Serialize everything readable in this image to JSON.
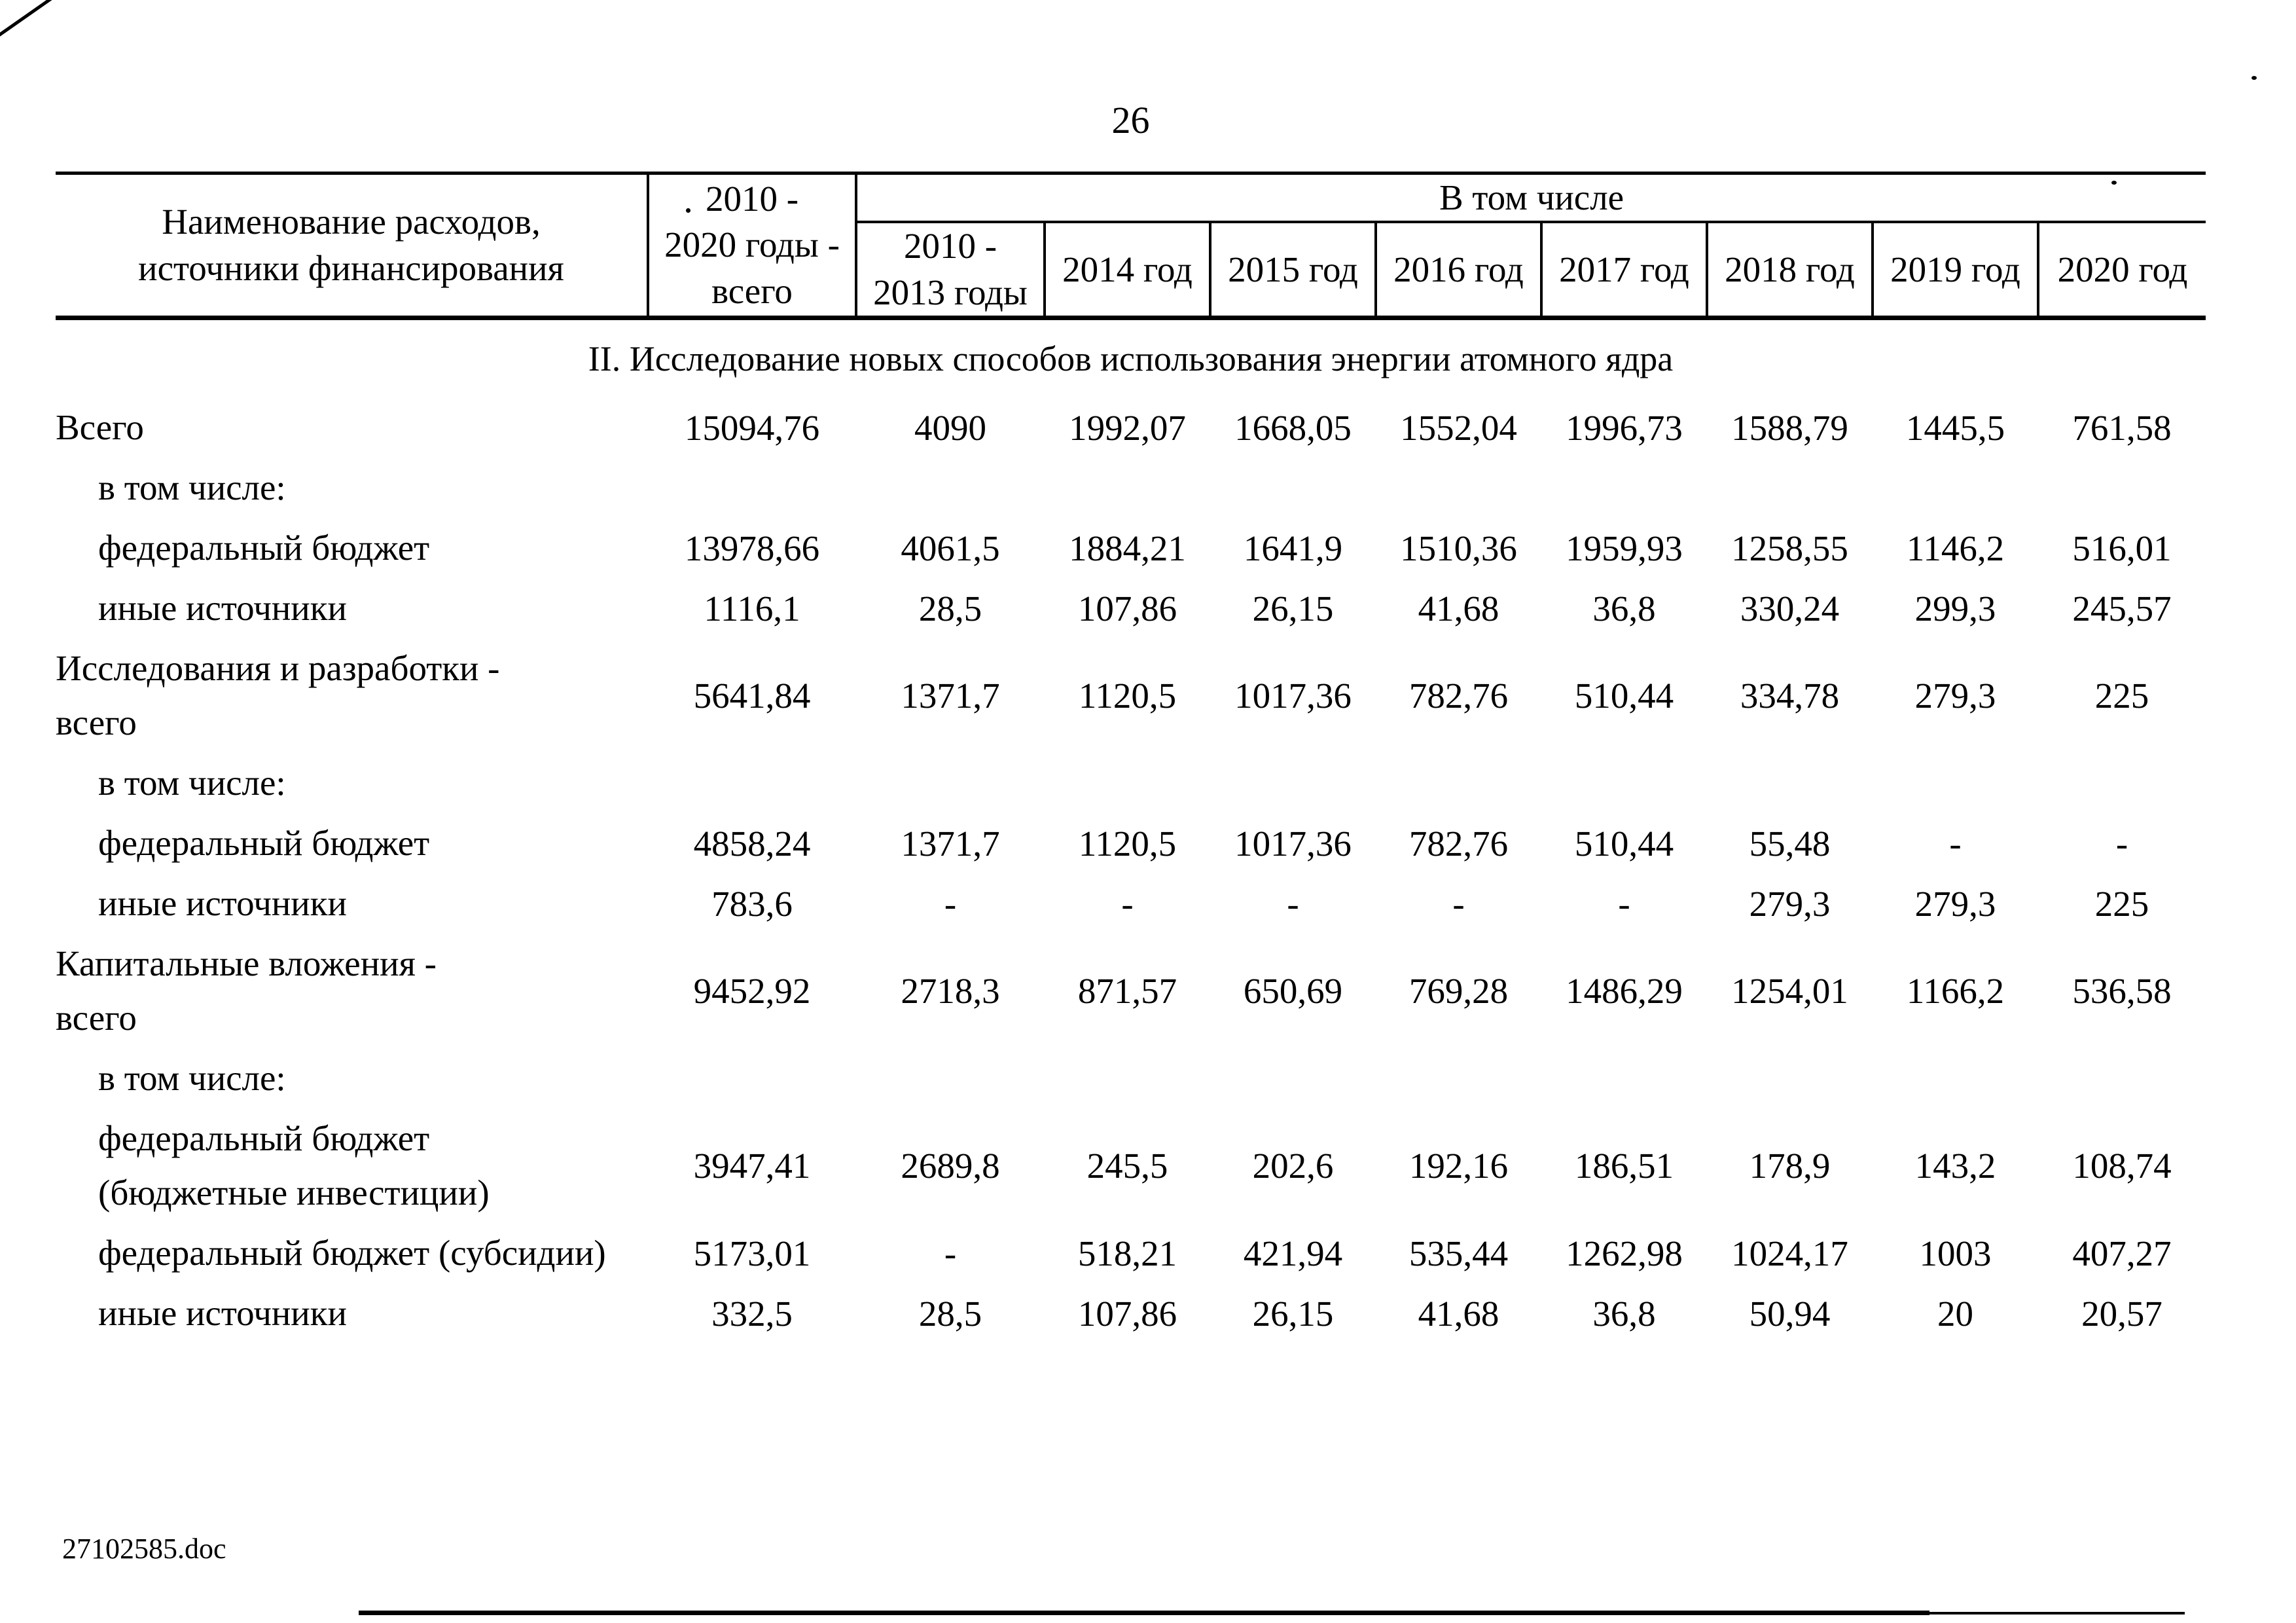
{
  "page_number": "26",
  "footer_filename": "27102585.doc",
  "table": {
    "header": {
      "name_col": "Наименование расходов,\nисточники финансирования",
      "total_col": "2010 -\n2020 годы -\nвсего",
      "group_col": "В том числе",
      "years": [
        "2010 -\n2013 годы",
        "2014 год",
        "2015 год",
        "2016 год",
        "2017 год",
        "2018 год",
        "2019 год",
        "2020 год"
      ]
    },
    "section_title": "II. Исследование новых способов использования энергии атомного ядра",
    "rows": [
      {
        "label": "Всего",
        "indent": 0,
        "values": [
          "15094,76",
          "4090",
          "1992,07",
          "1668,05",
          "1552,04",
          "1996,73",
          "1588,79",
          "1445,5",
          "761,58"
        ]
      },
      {
        "label": "в том числе:",
        "indent": 1,
        "values": []
      },
      {
        "label": "федеральный бюджет",
        "indent": 1,
        "values": [
          "13978,66",
          "4061,5",
          "1884,21",
          "1641,9",
          "1510,36",
          "1959,93",
          "1258,55",
          "1146,2",
          "516,01"
        ]
      },
      {
        "label": "иные источники",
        "indent": 1,
        "values": [
          "1116,1",
          "28,5",
          "107,86",
          "26,15",
          "41,68",
          "36,8",
          "330,24",
          "299,3",
          "245,57"
        ]
      },
      {
        "label": "Исследования и разработки -\nвсего",
        "indent": 0,
        "values": [
          "5641,84",
          "1371,7",
          "1120,5",
          "1017,36",
          "782,76",
          "510,44",
          "334,78",
          "279,3",
          "225"
        ]
      },
      {
        "label": "в том числе:",
        "indent": 1,
        "values": []
      },
      {
        "label": "федеральный бюджет",
        "indent": 1,
        "values": [
          "4858,24",
          "1371,7",
          "1120,5",
          "1017,36",
          "782,76",
          "510,44",
          "55,48",
          "-",
          "-"
        ]
      },
      {
        "label": "иные источники",
        "indent": 1,
        "values": [
          "783,6",
          "-",
          "-",
          "-",
          "-",
          "-",
          "279,3",
          "279,3",
          "225"
        ]
      },
      {
        "label": "Капитальные вложения -\nвсего",
        "indent": 0,
        "values": [
          "9452,92",
          "2718,3",
          "871,57",
          "650,69",
          "769,28",
          "1486,29",
          "1254,01",
          "1166,2",
          "536,58"
        ]
      },
      {
        "label": "в том числе:",
        "indent": 1,
        "values": []
      },
      {
        "label": "федеральный бюджет\n(бюджетные инвестиции)",
        "indent": 1,
        "values": [
          "3947,41",
          "2689,8",
          "245,5",
          "202,6",
          "192,16",
          "186,51",
          "178,9",
          "143,2",
          "108,74"
        ]
      },
      {
        "label": "федеральный бюджет (субсидии)",
        "indent": 1,
        "values": [
          "5173,01",
          "-",
          "518,21",
          "421,94",
          "535,44",
          "1262,98",
          "1024,17",
          "1003",
          "407,27"
        ]
      },
      {
        "label": "иные источники",
        "indent": 1,
        "values": [
          "332,5",
          "28,5",
          "107,86",
          "26,15",
          "41,68",
          "36,8",
          "50,94",
          "20",
          "20,57"
        ]
      }
    ]
  }
}
